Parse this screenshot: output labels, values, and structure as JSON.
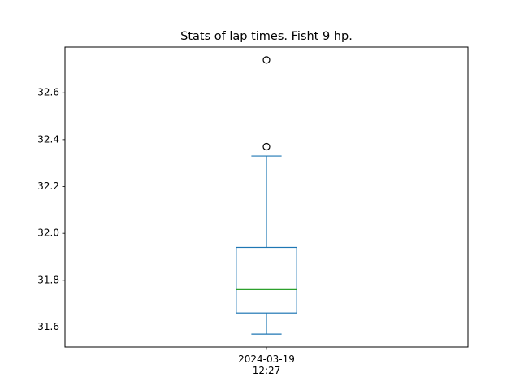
{
  "chart_data": {
    "type": "box",
    "title": "Stats of lap times. Fisht 9 hp.",
    "xlabel": "",
    "ylabel": "",
    "categories": [
      [
        "2024-03-19",
        "12:27"
      ]
    ],
    "boxes": [
      {
        "whisker_low": 31.57,
        "q1": 31.66,
        "median": 31.76,
        "q3": 31.94,
        "whisker_high": 32.33,
        "outliers": [
          32.37,
          32.74
        ]
      }
    ],
    "ylim": [
      31.515,
      32.795
    ],
    "yticks": [
      31.6,
      31.8,
      32.0,
      32.2,
      32.4,
      32.6
    ],
    "yticklabels": [
      "31.6",
      "31.8",
      "32.0",
      "32.2",
      "32.4",
      "32.6"
    ],
    "grid": false,
    "colors": {
      "box": "#1f77b4",
      "median": "#2ca02c",
      "outlier_edge": "#000000"
    }
  }
}
